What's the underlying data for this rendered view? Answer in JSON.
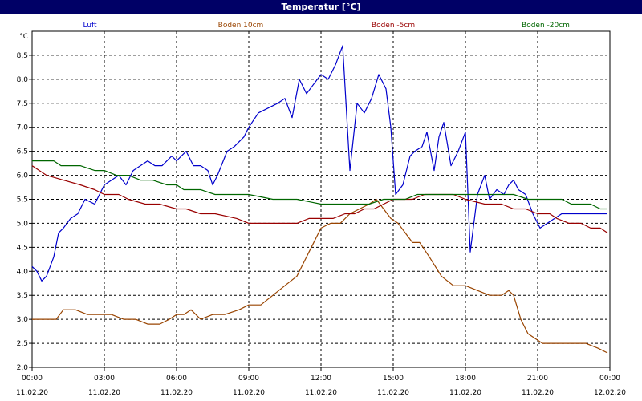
{
  "window": {
    "title": "Temperatur [°C]"
  },
  "chart_data": {
    "type": "line",
    "title": "Temperatur [°C]",
    "ylabel": "°C",
    "ylim": [
      2.0,
      9.0
    ],
    "xlim": [
      0,
      24
    ],
    "y_ticks": [
      "2,0",
      "2,5",
      "3,0",
      "3,5",
      "4,0",
      "4,5",
      "5,0",
      "5,5",
      "6,0",
      "6,5",
      "7,0",
      "7,5",
      "8,0",
      "8,5"
    ],
    "x_ticks": [
      {
        "time": "00:00",
        "date": "11.02.20"
      },
      {
        "time": "03:00",
        "date": "11.02.20"
      },
      {
        "time": "06:00",
        "date": "11.02.20"
      },
      {
        "time": "09:00",
        "date": "11.02.20"
      },
      {
        "time": "12:00",
        "date": "11.02.20"
      },
      {
        "time": "15:00",
        "date": "11.02.20"
      },
      {
        "time": "18:00",
        "date": "11.02.20"
      },
      {
        "time": "21:00",
        "date": "11.02.20"
      },
      {
        "time": "00:00",
        "date": "12.02.20"
      }
    ],
    "grid": true,
    "legend_position": "top",
    "series": [
      {
        "name": "Luft",
        "color": "#0000cc",
        "x": [
          0,
          0.2,
          0.4,
          0.6,
          0.9,
          1.1,
          1.3,
          1.6,
          1.9,
          2.2,
          2.6,
          3.0,
          3.3,
          3.6,
          3.9,
          4.2,
          4.5,
          4.8,
          5.1,
          5.4,
          5.8,
          6.0,
          6.2,
          6.4,
          6.7,
          7.0,
          7.3,
          7.5,
          7.7,
          8.1,
          8.4,
          8.8,
          9.0,
          9.4,
          9.8,
          10.2,
          10.5,
          10.8,
          11.1,
          11.4,
          11.7,
          12.0,
          12.3,
          12.6,
          12.9,
          13.2,
          13.5,
          13.8,
          14.1,
          14.4,
          14.7,
          14.9,
          15.1,
          15.4,
          15.7,
          15.9,
          16.2,
          16.4,
          16.7,
          16.9,
          17.1,
          17.4,
          17.7,
          18.0,
          18.2,
          18.5,
          18.8,
          19.0,
          19.3,
          19.6,
          19.8,
          20.0,
          20.2,
          20.5,
          20.8,
          21.1,
          21.4,
          21.7,
          22.0,
          22.3,
          22.6,
          22.9,
          23.2,
          23.5,
          23.9
        ],
        "values": [
          4.1,
          4.0,
          3.8,
          3.9,
          4.3,
          4.8,
          4.9,
          5.1,
          5.2,
          5.5,
          5.4,
          5.8,
          5.9,
          6.0,
          5.8,
          6.1,
          6.2,
          6.3,
          6.2,
          6.2,
          6.4,
          6.3,
          6.4,
          6.5,
          6.2,
          6.2,
          6.1,
          5.8,
          6.0,
          6.5,
          6.6,
          6.8,
          7.0,
          7.3,
          7.4,
          7.5,
          7.6,
          7.2,
          8.0,
          7.7,
          7.9,
          8.1,
          8.0,
          8.3,
          8.7,
          6.1,
          7.5,
          7.3,
          7.6,
          8.1,
          7.8,
          7.0,
          5.6,
          5.8,
          6.4,
          6.5,
          6.6,
          6.9,
          6.1,
          6.8,
          7.1,
          6.2,
          6.5,
          6.9,
          4.4,
          5.6,
          6.0,
          5.5,
          5.7,
          5.6,
          5.8,
          5.9,
          5.7,
          5.6,
          5.2,
          4.9,
          5.0,
          5.1,
          5.2,
          5.2,
          5.2,
          5.2,
          5.2,
          5.2,
          5.2
        ]
      },
      {
        "name": "Boden 10cm",
        "color": "#994400",
        "x": [
          0,
          1.0,
          1.3,
          1.8,
          2.3,
          2.8,
          3.3,
          3.8,
          4.3,
          4.8,
          5.3,
          5.7,
          6.0,
          6.3,
          6.6,
          7.0,
          7.5,
          8.0,
          8.6,
          9.0,
          9.5,
          10.0,
          10.5,
          11.0,
          11.5,
          12.0,
          12.4,
          12.8,
          13.2,
          13.6,
          14.0,
          14.3,
          14.6,
          14.9,
          15.2,
          15.5,
          15.8,
          16.1,
          16.5,
          17.0,
          17.5,
          18.0,
          18.5,
          19.0,
          19.5,
          19.8,
          20.0,
          20.3,
          20.6,
          20.9,
          21.2,
          21.5,
          22.0,
          22.5,
          23.0,
          23.5,
          23.9
        ],
        "values": [
          3.0,
          3.0,
          3.2,
          3.2,
          3.1,
          3.1,
          3.1,
          3.0,
          3.0,
          2.9,
          2.9,
          3.0,
          3.1,
          3.1,
          3.2,
          3.0,
          3.1,
          3.1,
          3.2,
          3.3,
          3.3,
          3.5,
          3.7,
          3.9,
          4.4,
          4.9,
          5.0,
          5.0,
          5.2,
          5.3,
          5.4,
          5.5,
          5.3,
          5.1,
          5.0,
          4.8,
          4.6,
          4.6,
          4.3,
          3.9,
          3.7,
          3.7,
          3.6,
          3.5,
          3.5,
          3.6,
          3.5,
          3.0,
          2.7,
          2.6,
          2.5,
          2.5,
          2.5,
          2.5,
          2.5,
          2.4,
          2.3
        ]
      },
      {
        "name": "Boden -5cm",
        "color": "#990000",
        "x": [
          0,
          0.3,
          0.6,
          1.3,
          2.0,
          2.6,
          3.0,
          3.6,
          4.0,
          4.7,
          5.3,
          6.0,
          6.4,
          7.0,
          7.6,
          8.5,
          9.0,
          10.0,
          11.0,
          11.5,
          12.0,
          12.5,
          13.0,
          13.4,
          13.8,
          14.2,
          14.6,
          15.0,
          15.4,
          15.8,
          16.3,
          17.0,
          17.5,
          18.0,
          18.8,
          19.5,
          20.0,
          20.5,
          21.0,
          21.5,
          21.8,
          22.3,
          22.8,
          23.2,
          23.6,
          23.9
        ],
        "values": [
          6.2,
          6.1,
          6.0,
          5.9,
          5.8,
          5.7,
          5.6,
          5.6,
          5.5,
          5.4,
          5.4,
          5.3,
          5.3,
          5.2,
          5.2,
          5.1,
          5.0,
          5.0,
          5.0,
          5.1,
          5.1,
          5.1,
          5.2,
          5.2,
          5.3,
          5.3,
          5.4,
          5.5,
          5.5,
          5.5,
          5.6,
          5.6,
          5.6,
          5.5,
          5.4,
          5.4,
          5.3,
          5.3,
          5.2,
          5.2,
          5.1,
          5.0,
          5.0,
          4.9,
          4.9,
          4.8
        ]
      },
      {
        "name": "Boden -20cm",
        "color": "#006600",
        "x": [
          0,
          0.9,
          1.2,
          2.0,
          2.6,
          3.0,
          3.5,
          4.0,
          4.5,
          5.0,
          5.6,
          6.0,
          6.3,
          7.0,
          7.6,
          8.5,
          9.0,
          10.0,
          10.6,
          11.0,
          12.0,
          13.0,
          14.0,
          14.6,
          15.0,
          15.5,
          16.0,
          17.0,
          17.5,
          18.5,
          19.0,
          19.6,
          20.0,
          20.6,
          21.0,
          21.5,
          22.0,
          22.4,
          22.8,
          23.2,
          23.6,
          23.9
        ],
        "values": [
          6.3,
          6.3,
          6.2,
          6.2,
          6.1,
          6.1,
          6.0,
          6.0,
          5.9,
          5.9,
          5.8,
          5.8,
          5.7,
          5.7,
          5.6,
          5.6,
          5.6,
          5.5,
          5.5,
          5.5,
          5.4,
          5.4,
          5.4,
          5.5,
          5.5,
          5.5,
          5.6,
          5.6,
          5.6,
          5.6,
          5.6,
          5.6,
          5.6,
          5.5,
          5.5,
          5.5,
          5.5,
          5.4,
          5.4,
          5.4,
          5.3,
          5.3
        ]
      }
    ]
  }
}
